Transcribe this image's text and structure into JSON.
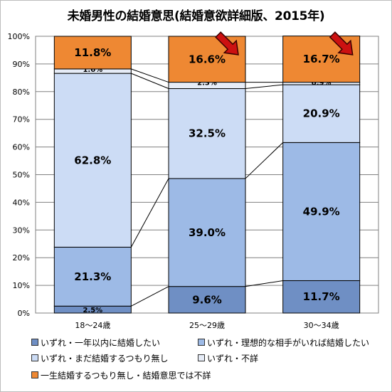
{
  "chart_data": {
    "type": "bar",
    "stacked": true,
    "title": "未婚男性の結婚意思(結婚意欲詳細版、2015年)",
    "categories": [
      "18〜24歳",
      "25〜29歳",
      "30〜34歳"
    ],
    "yticks": [
      "0%",
      "10%",
      "20%",
      "30%",
      "40%",
      "50%",
      "60%",
      "70%",
      "80%",
      "90%",
      "100%"
    ],
    "ylim": [
      0,
      100
    ],
    "grid": true,
    "legend_position": "bottom",
    "series": [
      {
        "name": "いずれ・一年以内に結婚したい",
        "values": [
          2.5,
          9.6,
          11.7
        ],
        "labels": [
          "2.5%",
          "9.6%",
          "11.7%"
        ],
        "color": "#6f8fc4"
      },
      {
        "name": "いずれ・理想的な相手がいれば結婚したい",
        "values": [
          21.3,
          39.0,
          49.9
        ],
        "labels": [
          "21.3%",
          "39.0%",
          "49.9%"
        ],
        "color": "#9dbae6"
      },
      {
        "name": "いずれ・まだ結婚するつもり無し",
        "values": [
          62.8,
          32.5,
          20.9
        ],
        "labels": [
          "62.8%",
          "32.5%",
          "20.9%"
        ],
        "color": "#ccdcf5"
      },
      {
        "name": "いずれ・不詳",
        "values": [
          1.6,
          2.3,
          0.9
        ],
        "labels": [
          "1.6%",
          "2.3%",
          "0.9%"
        ],
        "color": "#e6ecf7"
      },
      {
        "name": "一生結婚するつもり無し・結婚意思では不詳",
        "values": [
          11.8,
          16.6,
          16.7
        ],
        "labels": [
          "11.8%",
          "16.6%",
          "16.7%"
        ],
        "color": "#ee8833"
      }
    ],
    "highlight_arrow_color": "#cc1111"
  }
}
